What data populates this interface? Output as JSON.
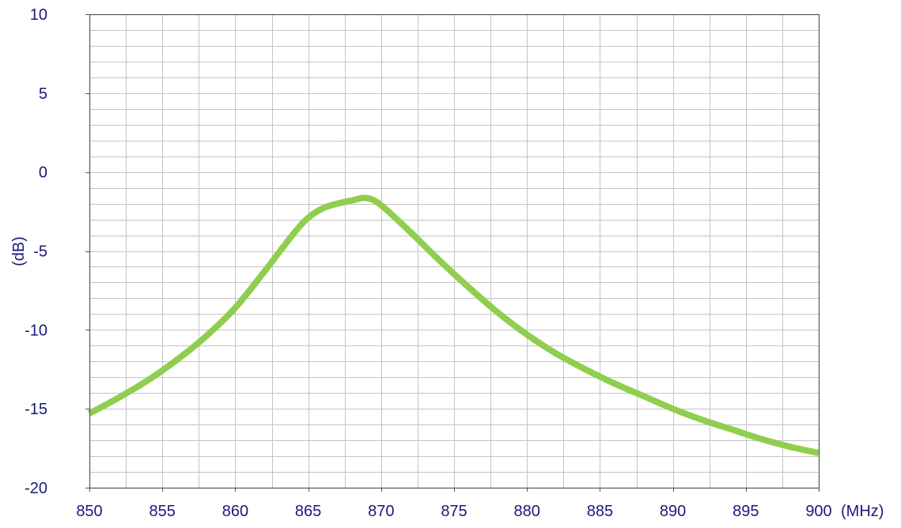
{
  "chart_data": {
    "type": "line",
    "title": "",
    "xlabel": "",
    "ylabel": "(dB)",
    "x_unit_label": "(MHz)",
    "xlim": [
      850,
      900
    ],
    "ylim": [
      -20,
      10
    ],
    "x_ticks": [
      850,
      855,
      860,
      865,
      870,
      875,
      880,
      885,
      890,
      895,
      900
    ],
    "y_ticks": [
      10,
      5,
      0,
      -5,
      -10,
      -15,
      -20
    ],
    "grid": true,
    "x_minor_step": 2.5,
    "y_minor_step": 1,
    "series": [
      {
        "color": "#8fce4f",
        "x": [
          850,
          852,
          854,
          856,
          858,
          860,
          862,
          864,
          865,
          866,
          867,
          868,
          869,
          870,
          872,
          874,
          876,
          878,
          880,
          882,
          884,
          886,
          888,
          890,
          892,
          894,
          896,
          898,
          900
        ],
        "y": [
          -15.3,
          -14.3,
          -13.2,
          -11.9,
          -10.4,
          -8.6,
          -6.3,
          -3.9,
          -2.9,
          -2.3,
          -2.0,
          -1.8,
          -1.65,
          -2.1,
          -3.8,
          -5.6,
          -7.3,
          -8.9,
          -10.3,
          -11.5,
          -12.5,
          -13.4,
          -14.2,
          -15.0,
          -15.7,
          -16.3,
          -16.9,
          -17.4,
          -17.8
        ]
      }
    ],
    "colors": {
      "text": "#1a1a7a",
      "grid": "#c4c4c4",
      "axis": "#555555",
      "line": "#8fce4f"
    }
  }
}
